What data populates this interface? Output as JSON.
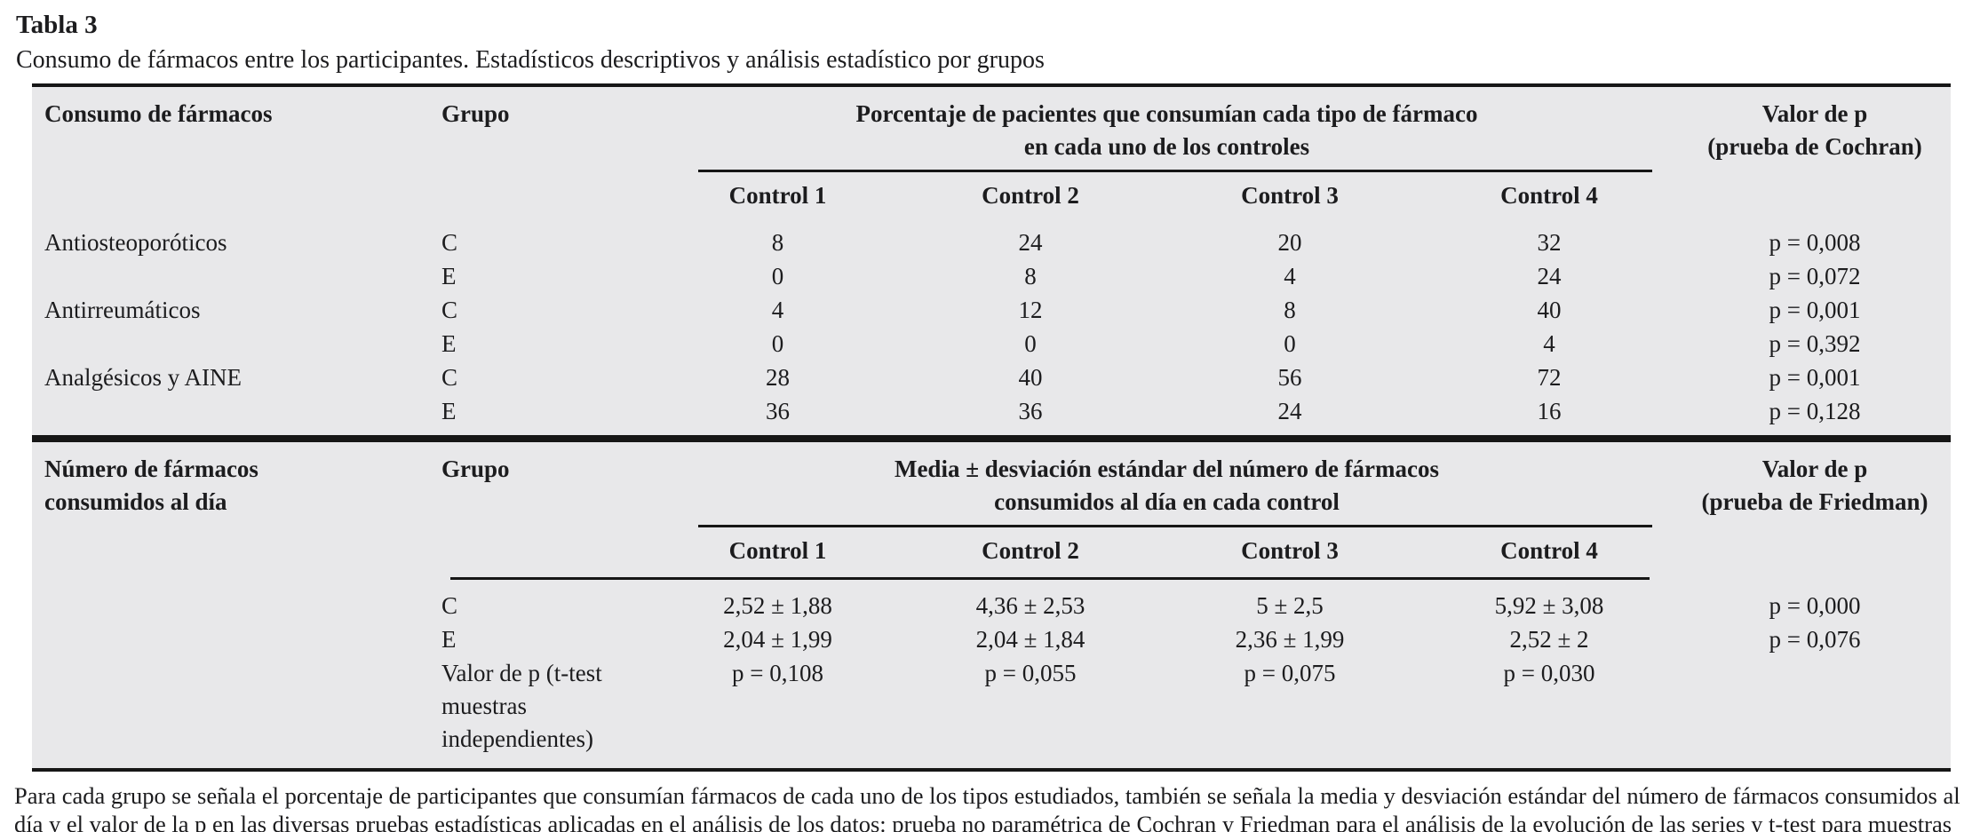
{
  "caption": {
    "label": "Tabla 3",
    "description": "Consumo de fármacos entre los participantes. Estadísticos descriptivos y análisis estadístico por grupos"
  },
  "colors": {
    "table_background": "#e8e8ea",
    "rule": "#161616",
    "text": "#1c1c1e"
  },
  "table": {
    "section1": {
      "col1_header": "Consumo de fármacos",
      "group_header": "Grupo",
      "span_header_line1": "Porcentaje de pacientes que consumían cada tipo de fármaco",
      "span_header_line2": "en cada uno de los controles",
      "p_header_line1": "Valor de p",
      "p_header_line2": "(prueba de Cochran)",
      "controls": [
        "Control 1",
        "Control 2",
        "Control 3",
        "Control 4"
      ],
      "rows": [
        {
          "drug": "Antiosteoporóticos",
          "group": "C",
          "values": [
            "8",
            "24",
            "20",
            "32"
          ],
          "p": "p = 0,008"
        },
        {
          "drug": "",
          "group": "E",
          "values": [
            "0",
            "8",
            "4",
            "24"
          ],
          "p": "p = 0,072"
        },
        {
          "drug": "Antirreumáticos",
          "group": "C",
          "values": [
            "4",
            "12",
            "8",
            "40"
          ],
          "p": "p = 0,001"
        },
        {
          "drug": "",
          "group": "E",
          "values": [
            "0",
            "0",
            "0",
            "4"
          ],
          "p": "p = 0,392"
        },
        {
          "drug": "Analgésicos y AINE",
          "group": "C",
          "values": [
            "28",
            "40",
            "56",
            "72"
          ],
          "p": "p = 0,001"
        },
        {
          "drug": "",
          "group": "E",
          "values": [
            "36",
            "36",
            "24",
            "16"
          ],
          "p": "p = 0,128"
        }
      ]
    },
    "section2": {
      "col1_header_line1": "Número de fármacos",
      "col1_header_line2": "consumidos al día",
      "group_header": "Grupo",
      "span_header_line1": "Media ± desviación estándar del número de fármacos",
      "span_header_line2": "consumidos al día en cada control",
      "p_header_line1": "Valor de p",
      "p_header_line2": "(prueba de Friedman)",
      "controls": [
        "Control 1",
        "Control 2",
        "Control 3",
        "Control 4"
      ],
      "rows": [
        {
          "group": "C",
          "values": [
            "2,52 ± 1,88",
            "4,36 ± 2,53",
            "5 ± 2,5",
            "5,92 ± 3,08"
          ],
          "p": "p = 0,000"
        },
        {
          "group": "E",
          "values": [
            "2,04 ± 1,99",
            "2,04 ± 1,84",
            "2,36 ± 1,99",
            "2,52 ± 2"
          ],
          "p": "p = 0,076"
        },
        {
          "group": "Valor de p (t-test muestras independientes)",
          "values": [
            "p = 0,108",
            "p = 0,055",
            "p = 0,075",
            "p = 0,030"
          ],
          "p": ""
        }
      ]
    }
  },
  "footnote": "Para cada grupo se señala el porcentaje de participantes que consumían fármacos de cada uno de los tipos estudiados, también se señala la media y desviación estándar del número de fármacos consumidos al día y el valor de la p en las diversas pruebas estadísticas aplicadas en el análisis de los datos: prueba no paramétrica de Cochran y Friedman para el análisis de la evolución de las series y t-test para muestras independientes. AINE: antiinflamatorios no esteroideos."
}
